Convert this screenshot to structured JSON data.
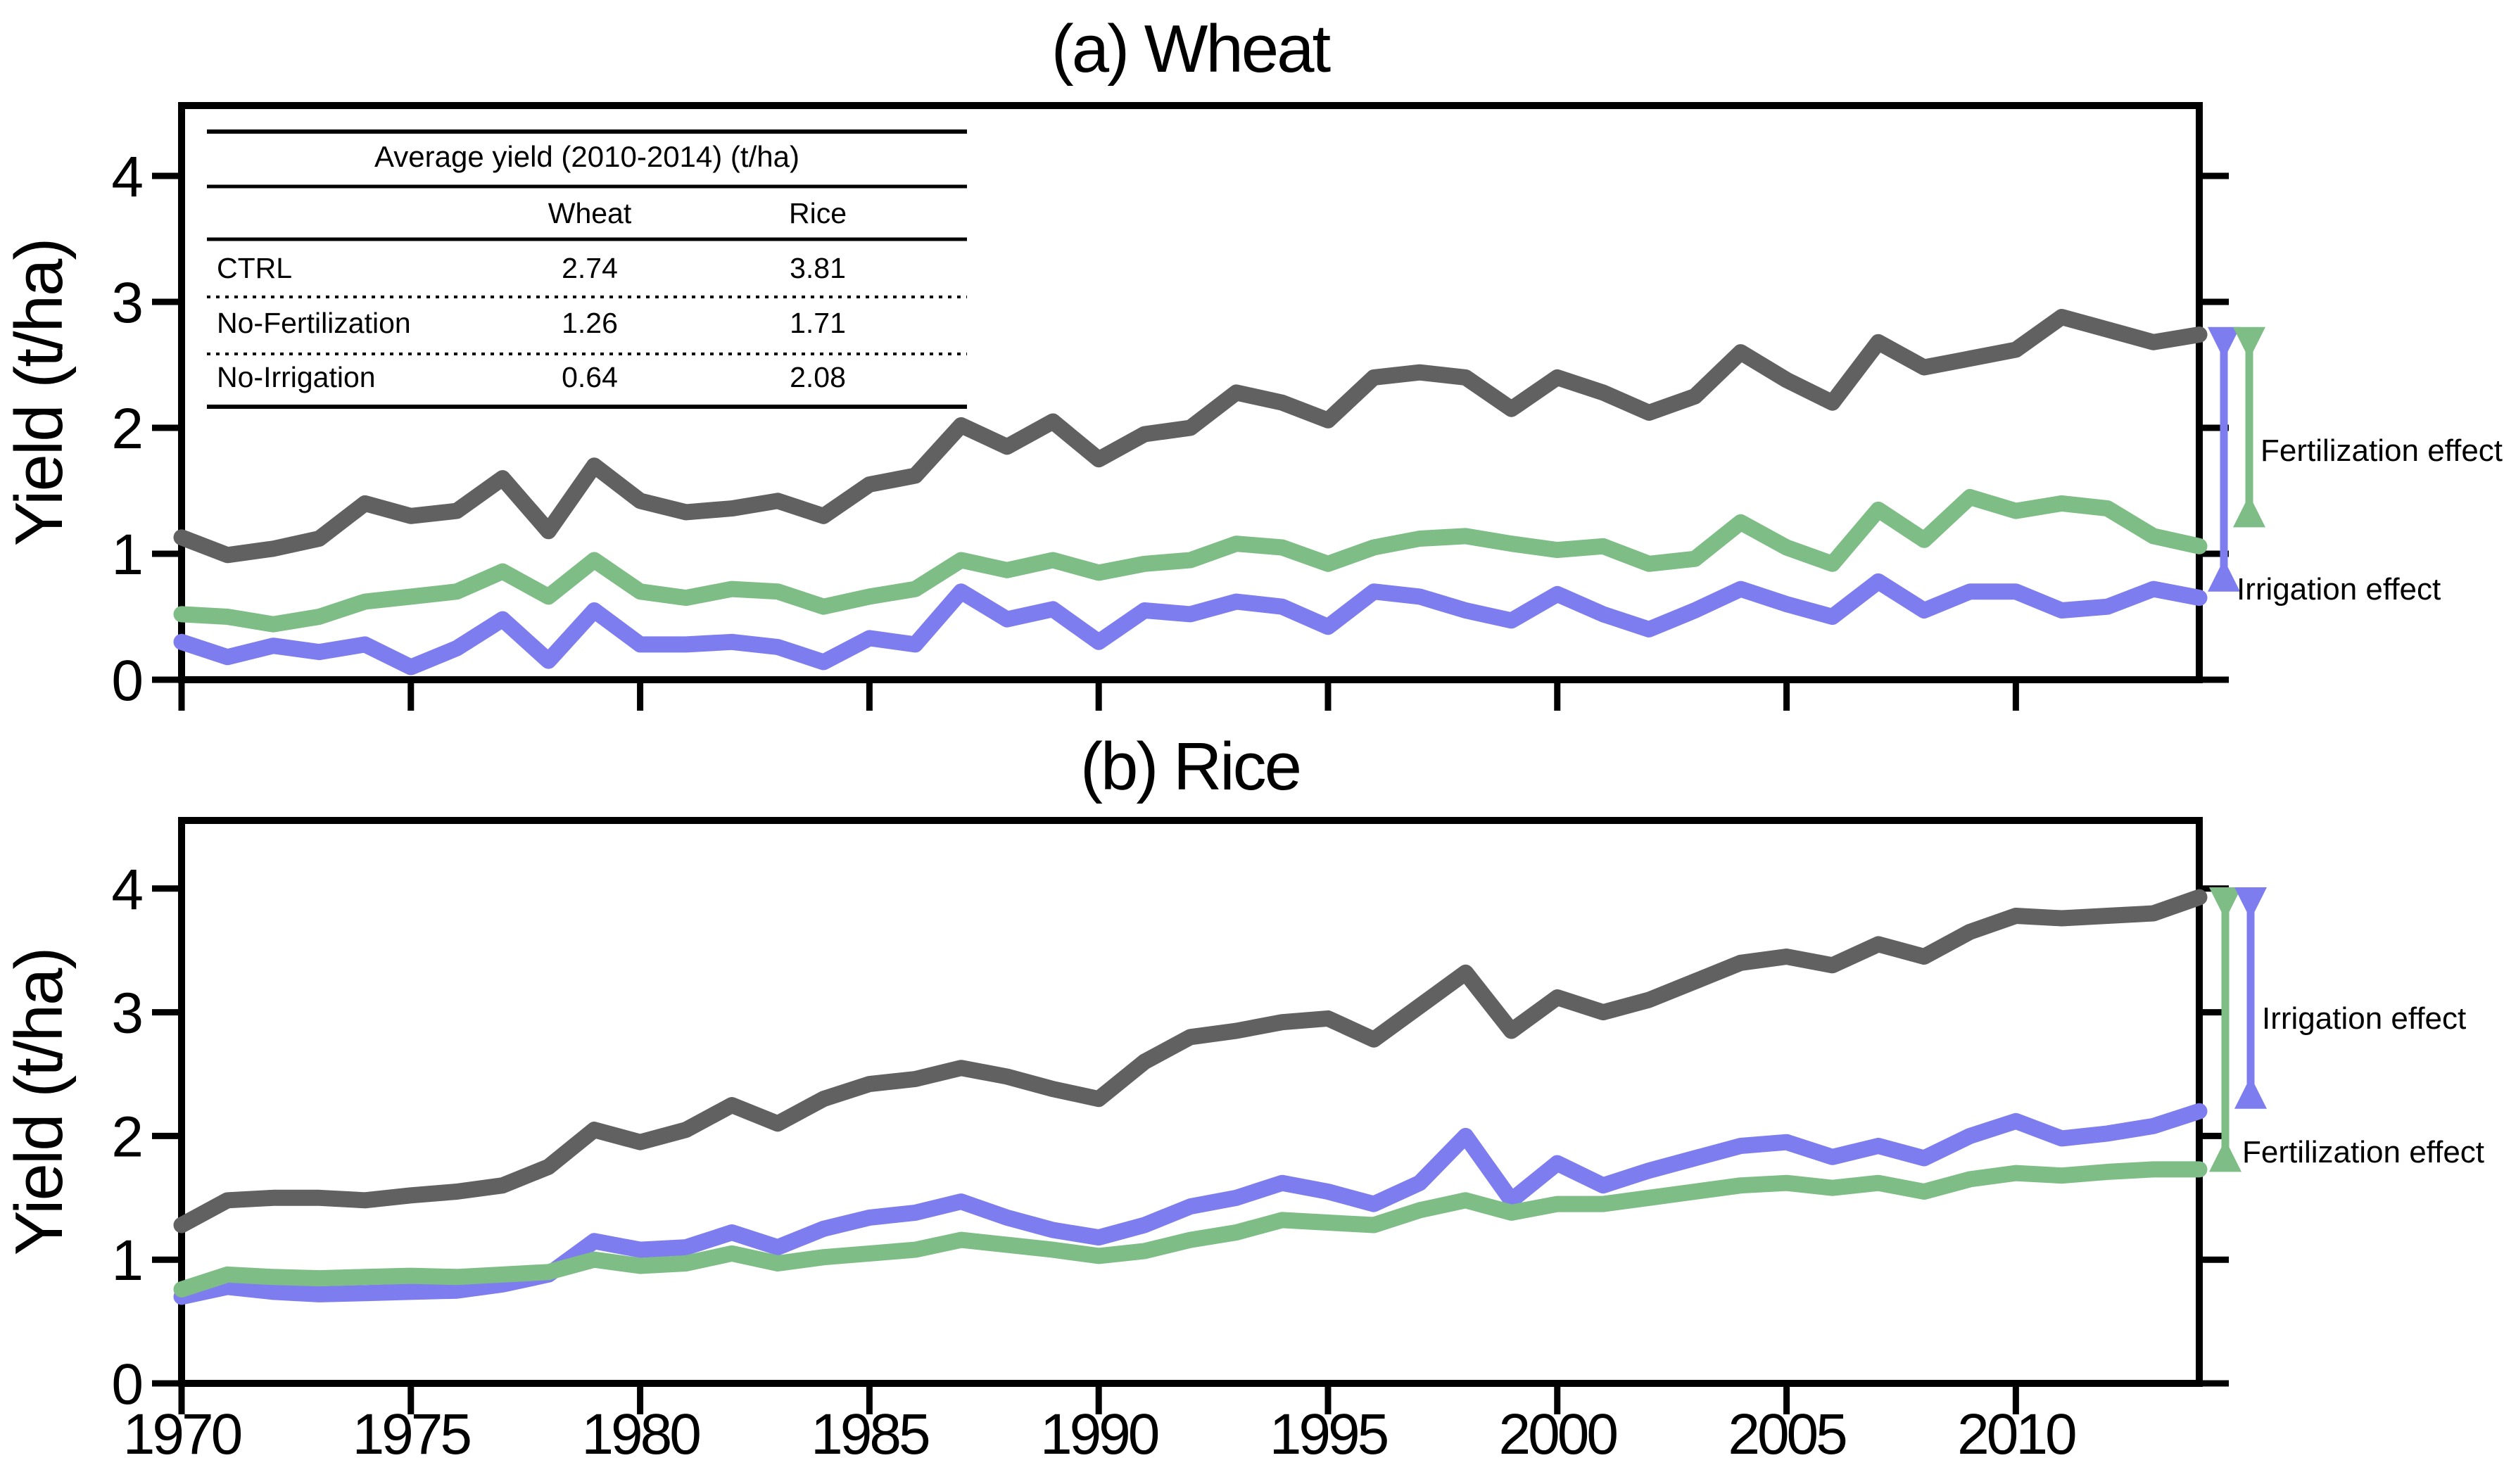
{
  "page": {
    "background": "#ffffff"
  },
  "titles": {
    "panel_a": "(a) Wheat",
    "panel_b": "(b) Rice"
  },
  "ylabel": "Yield (t/ha)",
  "colors": {
    "ctrl": "#616161",
    "no_fertilization": "#7ebd85",
    "no_irrigation": "#7d7df0",
    "axis": "#000000"
  },
  "inset_table": {
    "title": "Average yield (2010-2014) (t/ha)",
    "columns": [
      "Wheat",
      "Rice"
    ],
    "rows": [
      {
        "label": "CTRL",
        "wheat": "2.74",
        "rice": "3.81"
      },
      {
        "label": "No-Fertilization",
        "wheat": "1.26",
        "rice": "1.71"
      },
      {
        "label": "No-Irrigation",
        "wheat": "0.64",
        "rice": "2.08"
      }
    ]
  },
  "chart_data": [
    {
      "type": "line",
      "title": "(a) Wheat",
      "ylabel": "Yield (t/ha)",
      "xlim": [
        1970,
        2014
      ],
      "ylim": [
        0,
        4.56
      ],
      "x_ticks": [
        1970,
        1975,
        1980,
        1985,
        1990,
        1995,
        2000,
        2005,
        2010
      ],
      "x_tick_labels_visible": false,
      "y_ticks": [
        0,
        1,
        2,
        3,
        4
      ],
      "grid": false,
      "x": [
        1970,
        1971,
        1972,
        1973,
        1974,
        1975,
        1976,
        1977,
        1978,
        1979,
        1980,
        1981,
        1982,
        1983,
        1984,
        1985,
        1986,
        1987,
        1988,
        1989,
        1990,
        1991,
        1992,
        1993,
        1994,
        1995,
        1996,
        1997,
        1998,
        1999,
        2000,
        2001,
        2002,
        2003,
        2004,
        2005,
        2006,
        2007,
        2008,
        2009,
        2010,
        2011,
        2012,
        2013,
        2014
      ],
      "series": [
        {
          "name": "CTRL",
          "color_key": "ctrl",
          "values": [
            1.13,
            0.99,
            1.04,
            1.12,
            1.4,
            1.3,
            1.34,
            1.6,
            1.18,
            1.7,
            1.42,
            1.33,
            1.36,
            1.42,
            1.3,
            1.55,
            1.62,
            2.02,
            1.85,
            2.05,
            1.75,
            1.95,
            2.0,
            2.28,
            2.2,
            2.06,
            2.4,
            2.44,
            2.4,
            2.15,
            2.4,
            2.28,
            2.12,
            2.25,
            2.6,
            2.38,
            2.2,
            2.68,
            2.48,
            2.55,
            2.62,
            2.88,
            2.78,
            2.68,
            2.74
          ]
        },
        {
          "name": "No-Fertilization",
          "color_key": "no_fertilization",
          "values": [
            0.52,
            0.5,
            0.44,
            0.5,
            0.62,
            0.66,
            0.7,
            0.86,
            0.66,
            0.95,
            0.7,
            0.65,
            0.72,
            0.7,
            0.58,
            0.66,
            0.72,
            0.95,
            0.87,
            0.95,
            0.85,
            0.92,
            0.95,
            1.08,
            1.05,
            0.92,
            1.05,
            1.12,
            1.14,
            1.08,
            1.03,
            1.06,
            0.92,
            0.96,
            1.25,
            1.05,
            0.92,
            1.35,
            1.11,
            1.45,
            1.34,
            1.4,
            1.36,
            1.14,
            1.06
          ]
        },
        {
          "name": "No-Irrigation",
          "color_key": "no_irrigation",
          "values": [
            0.3,
            0.18,
            0.27,
            0.22,
            0.28,
            0.1,
            0.25,
            0.48,
            0.15,
            0.55,
            0.28,
            0.28,
            0.3,
            0.26,
            0.14,
            0.33,
            0.28,
            0.7,
            0.48,
            0.56,
            0.3,
            0.55,
            0.52,
            0.62,
            0.58,
            0.42,
            0.7,
            0.66,
            0.55,
            0.47,
            0.68,
            0.52,
            0.4,
            0.55,
            0.72,
            0.6,
            0.5,
            0.78,
            0.55,
            0.7,
            0.7,
            0.55,
            0.58,
            0.72,
            0.65
          ]
        }
      ],
      "annotations": [
        {
          "label": "Irrigation effect",
          "color_key": "no_irrigation",
          "top_value": 2.8,
          "bottom_value": 0.7,
          "x_offset": 35,
          "label_dx": 53,
          "label_y": 852
        },
        {
          "label": "Fertilization effect",
          "color_key": "no_fertilization",
          "top_value": 2.8,
          "bottom_value": 1.21,
          "x_offset": 71,
          "label_dx": 87,
          "label_y": 655
        }
      ]
    },
    {
      "type": "line",
      "title": "(b) Rice",
      "ylabel": "Yield (t/ha)",
      "xlim": [
        1970,
        2014
      ],
      "ylim": [
        0,
        4.55
      ],
      "x_ticks": [
        1970,
        1975,
        1980,
        1985,
        1990,
        1995,
        2000,
        2005,
        2010
      ],
      "x_tick_labels_visible": true,
      "y_ticks": [
        0,
        1,
        2,
        3,
        4
      ],
      "grid": false,
      "x": [
        1970,
        1971,
        1972,
        1973,
        1974,
        1975,
        1976,
        1977,
        1978,
        1979,
        1980,
        1981,
        1982,
        1983,
        1984,
        1985,
        1986,
        1987,
        1988,
        1989,
        1990,
        1991,
        1992,
        1993,
        1994,
        1995,
        1996,
        1997,
        1998,
        1999,
        2000,
        2001,
        2002,
        2003,
        2004,
        2005,
        2006,
        2007,
        2008,
        2009,
        2010,
        2011,
        2012,
        2013,
        2014
      ],
      "series": [
        {
          "name": "CTRL",
          "color_key": "ctrl",
          "values": [
            1.28,
            1.48,
            1.5,
            1.5,
            1.48,
            1.52,
            1.55,
            1.6,
            1.75,
            2.05,
            1.95,
            2.05,
            2.25,
            2.1,
            2.3,
            2.42,
            2.46,
            2.55,
            2.48,
            2.38,
            2.3,
            2.6,
            2.8,
            2.85,
            2.92,
            2.95,
            2.78,
            3.05,
            3.32,
            2.85,
            3.12,
            3.0,
            3.1,
            3.25,
            3.4,
            3.45,
            3.38,
            3.55,
            3.45,
            3.65,
            3.78,
            3.76,
            3.78,
            3.8,
            3.93
          ]
        },
        {
          "name": "No-Irrigation",
          "color_key": "no_irrigation",
          "values": [
            0.7,
            0.78,
            0.74,
            0.72,
            0.73,
            0.74,
            0.75,
            0.8,
            0.88,
            1.15,
            1.08,
            1.1,
            1.22,
            1.1,
            1.25,
            1.34,
            1.38,
            1.47,
            1.34,
            1.24,
            1.18,
            1.28,
            1.43,
            1.5,
            1.62,
            1.55,
            1.45,
            1.62,
            2.0,
            1.48,
            1.78,
            1.6,
            1.72,
            1.82,
            1.92,
            1.95,
            1.83,
            1.92,
            1.82,
            2.0,
            2.12,
            1.98,
            2.02,
            2.08,
            2.2
          ]
        },
        {
          "name": "No-Fertilization",
          "color_key": "no_fertilization",
          "values": [
            0.76,
            0.88,
            0.86,
            0.85,
            0.86,
            0.87,
            0.86,
            0.88,
            0.9,
            1.0,
            0.95,
            0.97,
            1.05,
            0.97,
            1.02,
            1.05,
            1.08,
            1.16,
            1.12,
            1.08,
            1.03,
            1.07,
            1.16,
            1.22,
            1.32,
            1.3,
            1.28,
            1.4,
            1.48,
            1.38,
            1.45,
            1.45,
            1.5,
            1.55,
            1.6,
            1.62,
            1.58,
            1.62,
            1.55,
            1.65,
            1.7,
            1.68,
            1.71,
            1.73,
            1.73
          ]
        }
      ],
      "annotations": [
        {
          "label": "Fertilization effect",
          "color_key": "no_fertilization",
          "top_value": 4.01,
          "bottom_value": 1.71,
          "x_offset": 37,
          "label_dx": 61,
          "label_y": 1652
        },
        {
          "label": "Irrigation effect",
          "color_key": "no_irrigation",
          "top_value": 4.01,
          "bottom_value": 2.22,
          "x_offset": 73,
          "label_dx": 89,
          "label_y": 1462
        }
      ]
    }
  ]
}
